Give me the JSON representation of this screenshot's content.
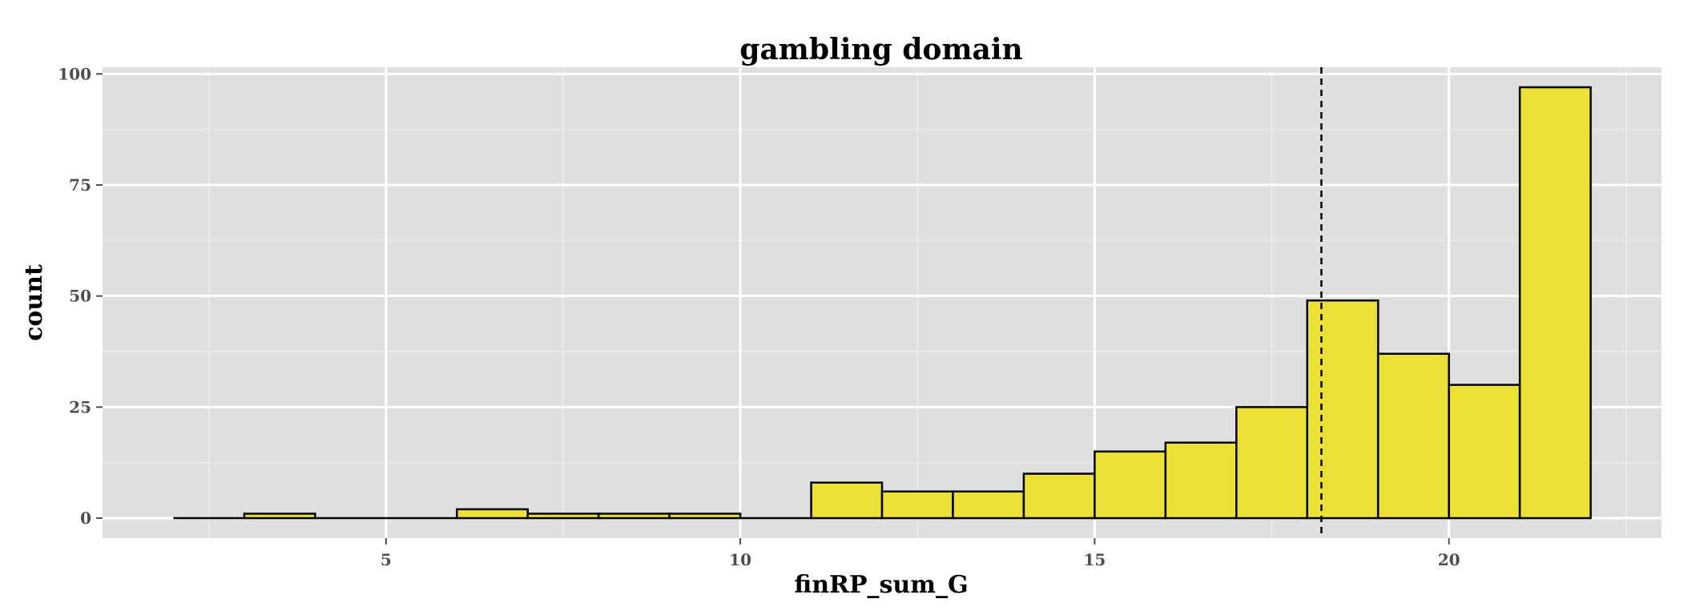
{
  "chart_data": {
    "type": "bar",
    "title": "gambling domain",
    "xlabel": "finRP_sum_G",
    "ylabel": "count",
    "xlim": [
      1.0,
      23.0
    ],
    "ylim": [
      -4.5,
      101.5
    ],
    "x_ticks": [
      5,
      10,
      15,
      20
    ],
    "y_ticks": [
      0,
      25,
      50,
      75,
      100
    ],
    "grid": true,
    "legend": "none",
    "bins": [
      {
        "start": 2,
        "end": 3,
        "count": 0
      },
      {
        "start": 3,
        "end": 4,
        "count": 1
      },
      {
        "start": 4,
        "end": 5,
        "count": 0
      },
      {
        "start": 5,
        "end": 6,
        "count": 0
      },
      {
        "start": 6,
        "end": 7,
        "count": 2
      },
      {
        "start": 7,
        "end": 8,
        "count": 1
      },
      {
        "start": 8,
        "end": 9,
        "count": 1
      },
      {
        "start": 9,
        "end": 10,
        "count": 1
      },
      {
        "start": 10,
        "end": 11,
        "count": 0
      },
      {
        "start": 11,
        "end": 12,
        "count": 8
      },
      {
        "start": 12,
        "end": 13,
        "count": 6
      },
      {
        "start": 13,
        "end": 14,
        "count": 6
      },
      {
        "start": 14,
        "end": 15,
        "count": 10
      },
      {
        "start": 15,
        "end": 16,
        "count": 15
      },
      {
        "start": 16,
        "end": 17,
        "count": 17
      },
      {
        "start": 17,
        "end": 18,
        "count": 25
      },
      {
        "start": 18,
        "end": 19,
        "count": 49
      },
      {
        "start": 19,
        "end": 20,
        "count": 37
      },
      {
        "start": 20,
        "end": 21,
        "count": 30
      },
      {
        "start": 21,
        "end": 22,
        "count": 97
      }
    ],
    "reference_line": {
      "x": 18.2,
      "style": "dashed"
    },
    "colors": {
      "bar_fill": "#ece136",
      "bar_stroke": "#000000",
      "panel": "#dfdfdf",
      "grid_major": "#ffffff",
      "grid_minor": "#ececec"
    }
  }
}
